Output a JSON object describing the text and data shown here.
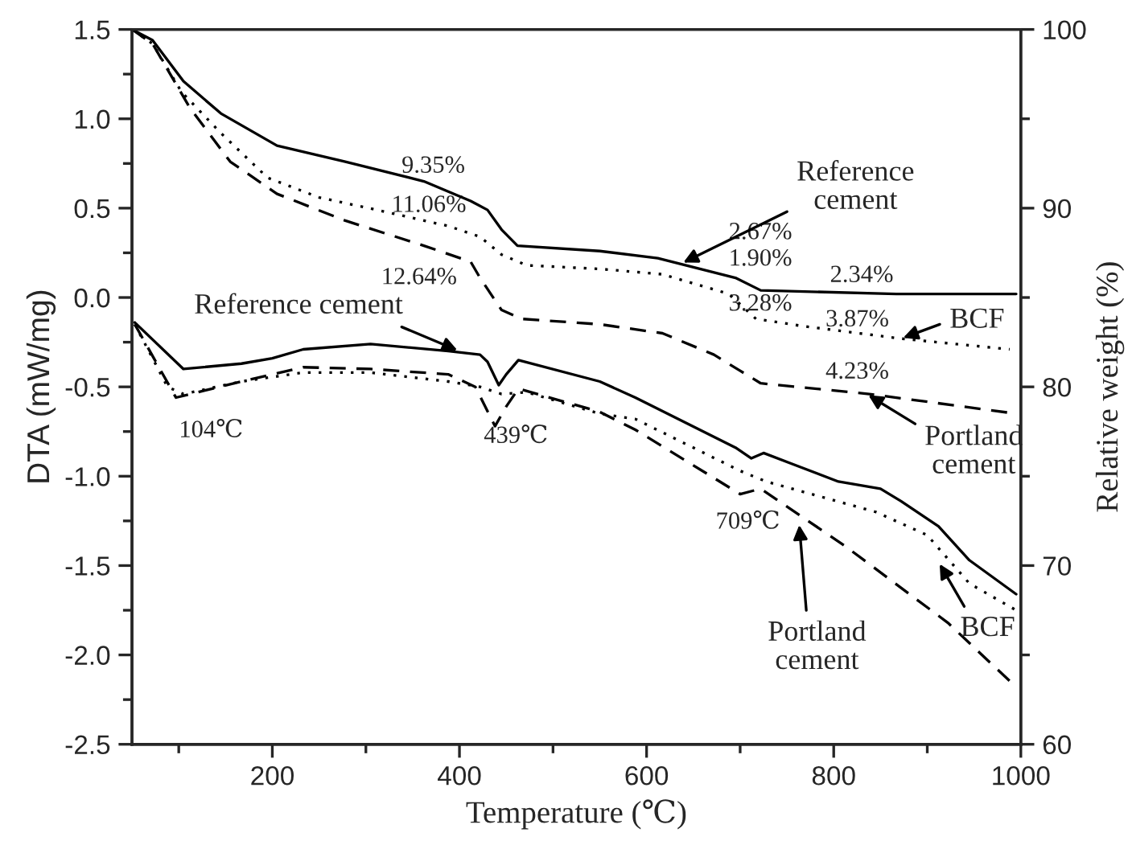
{
  "chart_data": {
    "type": "line",
    "xlabel": "Temperature (℃)",
    "ylabel": "DTA (mW/mg)",
    "y2label": "Relative weight (%)",
    "xlim": [
      50,
      1000
    ],
    "xticks": [
      200,
      400,
      600,
      800,
      1000
    ],
    "ylim": [
      -2.5,
      1.5
    ],
    "yticks": [
      -2.5,
      {
        "value": -2,
        "label": "-2.0"
      },
      -1.5,
      {
        "value": -1,
        "label": "-1.0"
      },
      -0.5,
      {
        "value": 0,
        "label": "0.0"
      },
      0.5,
      {
        "value": 1,
        "label": "1.0"
      },
      1.5
    ],
    "y2lim": [
      60,
      100
    ],
    "y2ticks": [
      60,
      70,
      80,
      90,
      100
    ],
    "grid": false,
    "legend": false,
    "marker": "none",
    "series": [
      {
        "color": "#000000",
        "line_style": "solid",
        "axis": "y2",
        "x": [
          50,
          72,
          105,
          145,
          205,
          278,
          362,
          412,
          430,
          445,
          462,
          550,
          612,
          695,
          722,
          867,
          995
        ],
        "values": [
          100,
          99.4,
          97.1,
          95.3,
          93.5,
          92.6,
          91.5,
          90.4,
          89.9,
          88.8,
          87.9,
          87.6,
          87.2,
          86.1,
          85.4,
          85.2,
          85.2
        ]
      },
      {
        "color": "#000000",
        "line_style": "dotted",
        "axis": "y2",
        "x": [
          50,
          72,
          103,
          145,
          195,
          250,
          312,
          388,
          422,
          445,
          472,
          550,
          617,
          688,
          717,
          767,
          872,
          988
        ],
        "values": [
          100,
          99.2,
          96.5,
          94.2,
          91.7,
          90.6,
          89.9,
          89.0,
          88.4,
          87.4,
          86.8,
          86.6,
          86.3,
          85.2,
          83.8,
          83.4,
          82.7,
          82.1
        ]
      },
      {
        "color": "#000000",
        "line_style": "dashed",
        "axis": "y2",
        "x": [
          50,
          72,
          112,
          155,
          205,
          278,
          362,
          412,
          422,
          445,
          467,
          550,
          617,
          672,
          700,
          722,
          838,
          995
        ],
        "values": [
          100,
          99.2,
          95.6,
          92.6,
          90.8,
          89.3,
          87.9,
          87.0,
          86.1,
          84.3,
          83.8,
          83.5,
          83.0,
          81.8,
          80.9,
          80.2,
          79.6,
          78.5
        ]
      },
      {
        "color": "#000000",
        "line_style": "solid",
        "x": [
          53,
          105,
          167,
          200,
          233,
          305,
          388,
          422,
          430,
          442,
          450,
          463,
          550,
          588,
          695,
          712,
          725,
          755,
          805,
          850,
          872,
          912,
          945,
          995
        ],
        "values": [
          -0.14,
          -0.4,
          -0.37,
          -0.34,
          -0.29,
          -0.26,
          -0.3,
          -0.32,
          -0.36,
          -0.49,
          -0.43,
          -0.35,
          -0.47,
          -0.56,
          -0.84,
          -0.9,
          -0.87,
          -0.93,
          -1.03,
          -1.07,
          -1.14,
          -1.28,
          -1.47,
          -1.66
        ]
      },
      {
        "color": "#000000",
        "line_style": "dotted",
        "x": [
          53,
          88,
          105,
          167,
          233,
          305,
          388,
          422,
          445,
          472,
          550,
          588,
          700,
          728,
          845,
          900,
          945,
          995
        ],
        "values": [
          -0.15,
          -0.5,
          -0.54,
          -0.47,
          -0.42,
          -0.42,
          -0.47,
          -0.5,
          -0.54,
          -0.53,
          -0.65,
          -0.68,
          -0.97,
          -1.03,
          -1.2,
          -1.33,
          -1.6,
          -1.75
        ]
      },
      {
        "color": "#000000",
        "line_style": "dashed",
        "x": [
          53,
          97,
          167,
          233,
          305,
          388,
          417,
          438,
          450,
          463,
          550,
          588,
          700,
          722,
          812,
          922,
          995
        ],
        "values": [
          -0.15,
          -0.56,
          -0.47,
          -0.39,
          -0.4,
          -0.43,
          -0.5,
          -0.72,
          -0.61,
          -0.51,
          -0.64,
          -0.74,
          -1.1,
          -1.07,
          -1.39,
          -1.82,
          -2.18
        ]
      }
    ],
    "annotations": [
      "9.35%",
      "11.06%",
      "12.64%",
      "2.67%",
      "1.90%",
      "3.28%",
      "2.34%",
      "3.87%",
      "4.23%",
      "104℃",
      "439℃",
      "709℃",
      {
        "text": "Reference\ncement",
        "x": 637,
        "y": 0.19
      },
      {
        "text": "BCF",
        "x": 872,
        "y": -0.23
      },
      {
        "text": "Reference cement",
        "x": 400,
        "y": -0.3
      },
      {
        "text": "Portland\ncement",
        "x": 835,
        "y": -0.54
      },
      {
        "text": "Portland\ncement",
        "x": 763,
        "y": -1.26
      },
      {
        "text": "BCF",
        "x": 912,
        "y": -1.48
      }
    ]
  }
}
